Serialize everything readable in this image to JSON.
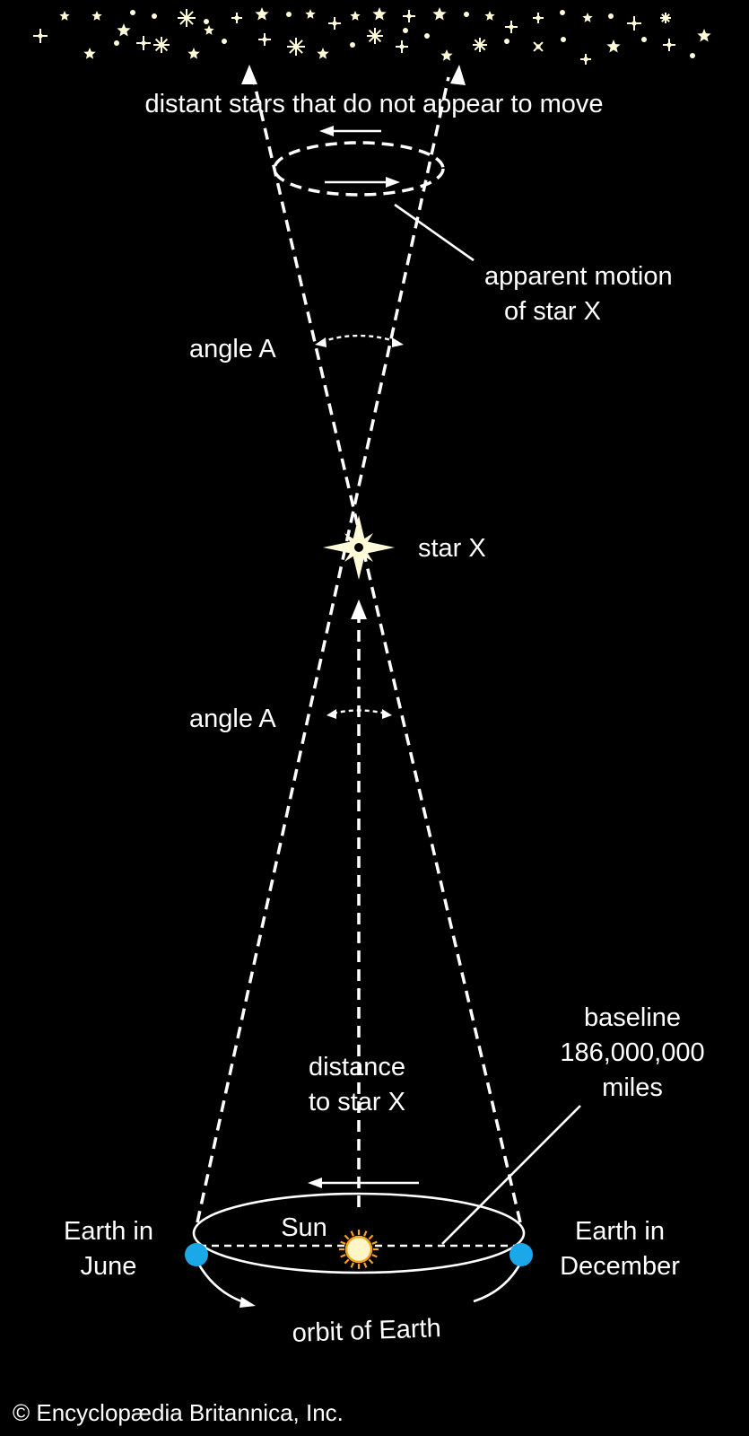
{
  "labels": {
    "distant_stars": "distant stars that do not appear to move",
    "apparent_motion_line1": "apparent motion",
    "apparent_motion_line2": "of star X",
    "angle_upper": "angle A",
    "star_x": "star X",
    "angle_lower": "angle A",
    "distance_line1": "distance",
    "distance_line2": "to star X",
    "baseline_line1": "baseline",
    "baseline_line2": "186,000,000",
    "baseline_line3": "miles",
    "earth_june_line1": "Earth in",
    "earth_june_line2": "June",
    "sun": "Sun",
    "earth_december_line1": "Earth in",
    "earth_december_line2": "December",
    "orbit": "orbit of Earth",
    "copyright": "© Encyclopædia Britannica, Inc."
  },
  "colors": {
    "background": "#000000",
    "line": "#ffffff",
    "star": "#fffbd8",
    "sun_body": "#fff6c8",
    "sun_rays": "#f7a21c",
    "earth": "#1aa8e8"
  },
  "icons": {
    "star_x": "four-point-star-icon",
    "sun": "sun-icon",
    "earth": "earth-dot-icon",
    "background_stars": "sparkle-star-icon"
  }
}
